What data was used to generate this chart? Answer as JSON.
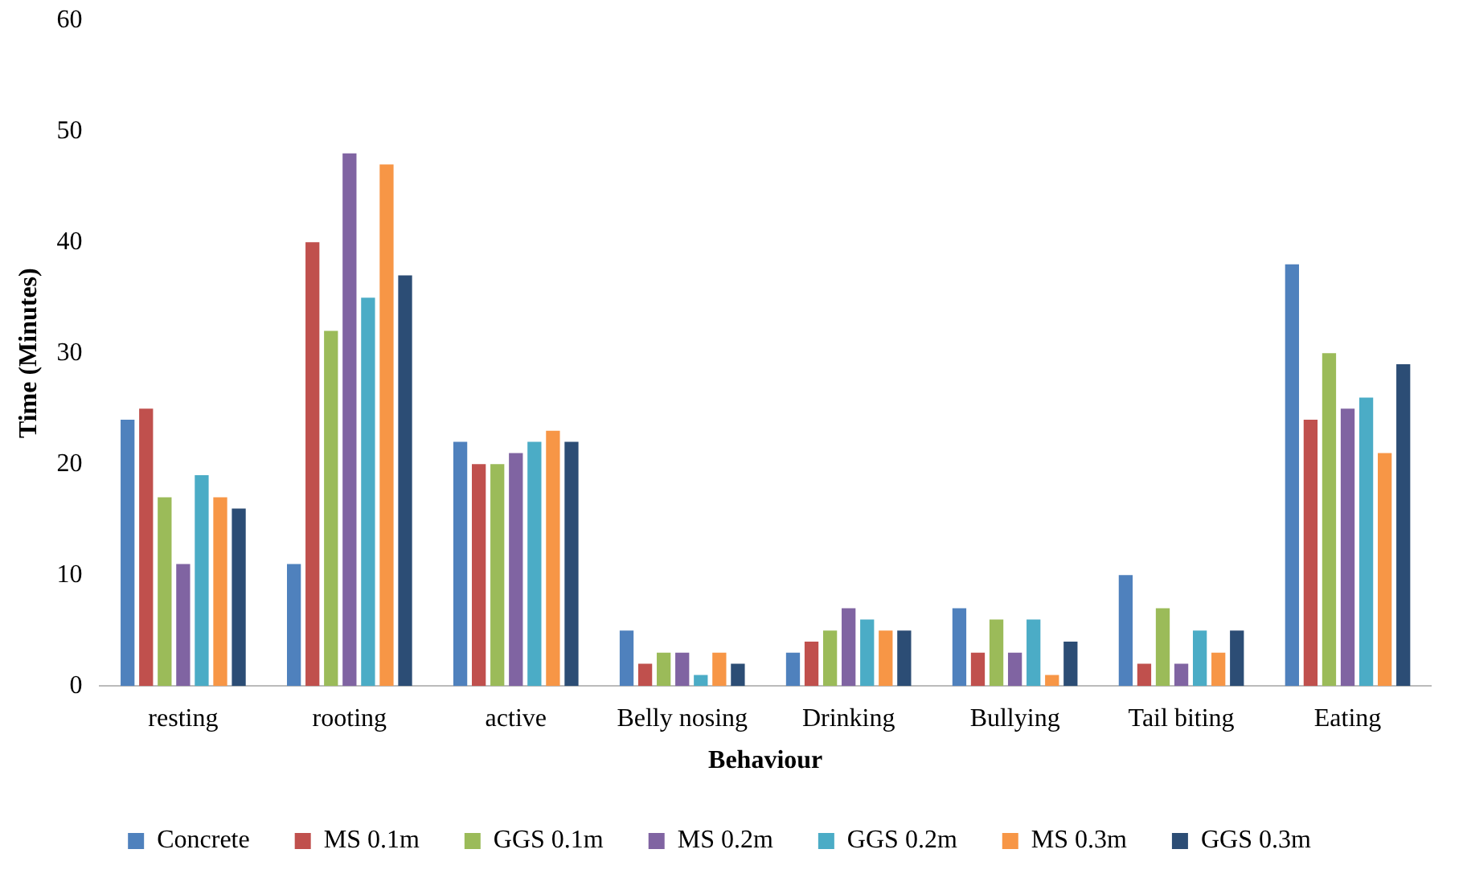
{
  "chart_data": {
    "type": "bar",
    "xlabel": "Behaviour",
    "ylabel": "Time (Minutes)",
    "categories": [
      "resting",
      "rooting",
      "active",
      "Belly nosing",
      "Drinking",
      "Bullying",
      "Tail biting",
      "Eating"
    ],
    "series": [
      {
        "name": "Concrete",
        "color": "#4f81bd",
        "values": [
          24,
          11,
          22,
          5,
          3,
          7,
          10,
          38
        ]
      },
      {
        "name": "MS 0.1m",
        "color": "#c0504d",
        "values": [
          25,
          40,
          20,
          2,
          4,
          3,
          2,
          24
        ]
      },
      {
        "name": "GGS 0.1m",
        "color": "#9bbb59",
        "values": [
          17,
          32,
          20,
          3,
          5,
          6,
          7,
          30
        ]
      },
      {
        "name": "MS 0.2m",
        "color": "#8064a2",
        "values": [
          11,
          48,
          21,
          3,
          7,
          3,
          2,
          25
        ]
      },
      {
        "name": "GGS 0.2m",
        "color": "#4bacc6",
        "values": [
          19,
          35,
          22,
          1,
          6,
          6,
          5,
          26
        ]
      },
      {
        "name": "MS 0.3m",
        "color": "#f79646",
        "values": [
          17,
          47,
          23,
          3,
          5,
          1,
          3,
          21
        ]
      },
      {
        "name": "GGS 0.3m",
        "color": "#2c4d75",
        "values": [
          16,
          37,
          22,
          2,
          5,
          4,
          5,
          29
        ]
      }
    ],
    "ylim": [
      0,
      60
    ],
    "yticks": [
      0,
      10,
      20,
      30,
      40,
      50,
      60
    ],
    "grid": false,
    "legend": "bottom"
  }
}
